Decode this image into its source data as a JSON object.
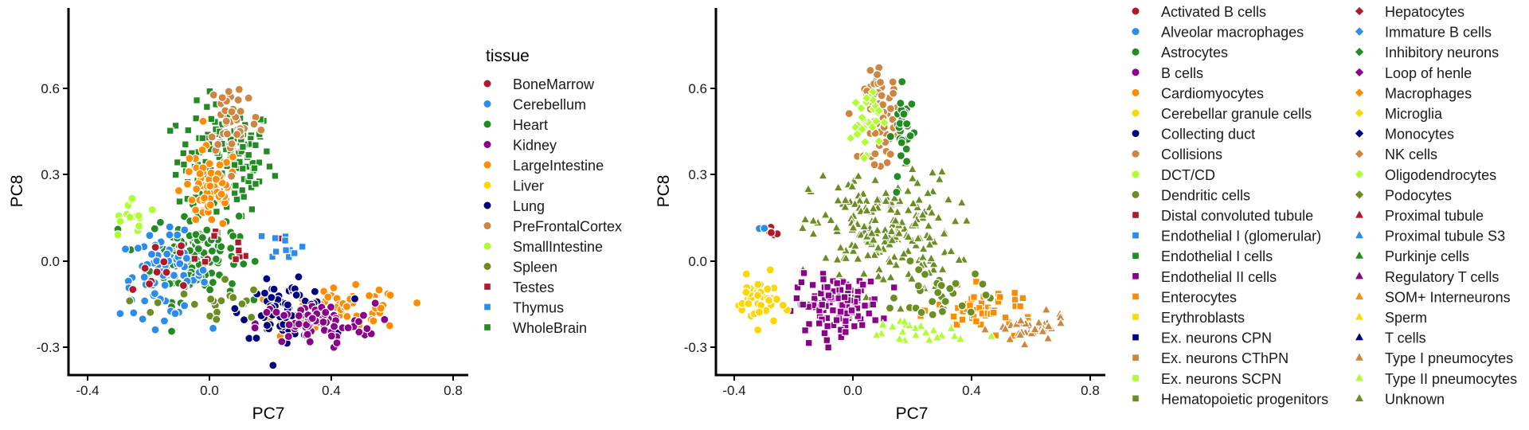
{
  "chart_data": [
    {
      "type": "scatter",
      "xlabel": "PC7",
      "ylabel": "PC8",
      "xlim": [
        -0.45,
        0.85
      ],
      "ylim": [
        -0.4,
        0.87
      ],
      "xticks": [
        "-0.4",
        "0.0",
        "0.4",
        "0.8"
      ],
      "xtick_values": [
        -0.4,
        0.0,
        0.4,
        0.8
      ],
      "yticks": [
        "-0.3",
        "0.0",
        "0.3",
        "0.6"
      ],
      "ytick_values": [
        -0.3,
        0.0,
        0.3,
        0.6
      ],
      "legend_title": "tissue",
      "legend_position": "right",
      "legend": [
        {
          "name": "BoneMarrow",
          "color": "#b2182b",
          "shape": "circle"
        },
        {
          "name": "Cerebellum",
          "color": "#2b8cee",
          "shape": "circle"
        },
        {
          "name": "Heart",
          "color": "#228b22",
          "shape": "circle"
        },
        {
          "name": "Kidney",
          "color": "#8b008b",
          "shape": "circle"
        },
        {
          "name": "LargeIntestine",
          "color": "#ff8c00",
          "shape": "circle"
        },
        {
          "name": "Liver",
          "color": "#ffd700",
          "shape": "circle"
        },
        {
          "name": "Lung",
          "color": "#000080",
          "shape": "circle"
        },
        {
          "name": "PreFrontalCortex",
          "color": "#cd853f",
          "shape": "circle"
        },
        {
          "name": "SmallIntestine",
          "color": "#adff2f",
          "shape": "circle"
        },
        {
          "name": "Spleen",
          "color": "#6b8e23",
          "shape": "circle"
        },
        {
          "name": "Testes",
          "color": "#b2182b",
          "shape": "square"
        },
        {
          "name": "Thymus",
          "color": "#2b8cee",
          "shape": "square"
        },
        {
          "name": "WholeBrain",
          "color": "#228b22",
          "shape": "square"
        }
      ],
      "clusters": [
        {
          "series": "WholeBrain",
          "n": 140,
          "cx": 0.05,
          "cy": 0.35,
          "sx": 0.13,
          "sy": 0.16
        },
        {
          "series": "Heart",
          "n": 130,
          "cx": -0.05,
          "cy": 0.02,
          "sx": 0.12,
          "sy": 0.13
        },
        {
          "series": "Cerebellum",
          "n": 70,
          "cx": -0.15,
          "cy": -0.05,
          "sx": 0.12,
          "sy": 0.12
        },
        {
          "series": "LargeIntestine",
          "n": 70,
          "cx": 0.0,
          "cy": 0.25,
          "sx": 0.08,
          "sy": 0.12
        },
        {
          "series": "LargeIntestine",
          "n": 60,
          "cx": 0.45,
          "cy": -0.17,
          "sx": 0.16,
          "sy": 0.06
        },
        {
          "series": "Lung",
          "n": 80,
          "cx": 0.25,
          "cy": -0.17,
          "sx": 0.12,
          "sy": 0.08
        },
        {
          "series": "Kidney",
          "n": 70,
          "cx": 0.35,
          "cy": -0.22,
          "sx": 0.16,
          "sy": 0.06
        },
        {
          "series": "PreFrontalCortex",
          "n": 40,
          "cx": 0.08,
          "cy": 0.5,
          "sx": 0.07,
          "sy": 0.12
        },
        {
          "series": "SmallIntestine",
          "n": 15,
          "cx": -0.25,
          "cy": 0.15,
          "sx": 0.07,
          "sy": 0.06
        },
        {
          "series": "Spleen",
          "n": 20,
          "cx": 0.0,
          "cy": -0.15,
          "sx": 0.15,
          "sy": 0.08
        },
        {
          "series": "BoneMarrow",
          "n": 12,
          "cx": -0.15,
          "cy": 0.0,
          "sx": 0.1,
          "sy": 0.1
        },
        {
          "series": "Testes",
          "n": 10,
          "cx": 0.1,
          "cy": 0.05,
          "sx": 0.1,
          "sy": 0.06
        },
        {
          "series": "Thymus",
          "n": 12,
          "cx": 0.25,
          "cy": 0.06,
          "sx": 0.05,
          "sy": 0.04
        }
      ]
    },
    {
      "type": "scatter",
      "xlabel": "PC7",
      "ylabel": "PC8",
      "xlim": [
        -0.45,
        0.85
      ],
      "ylim": [
        -0.4,
        0.87
      ],
      "xticks": [
        "-0.4",
        "0.0",
        "0.4",
        "0.8"
      ],
      "xtick_values": [
        -0.4,
        0.0,
        0.4,
        0.8
      ],
      "yticks": [
        "-0.3",
        "0.0",
        "0.3",
        "0.6"
      ],
      "ytick_values": [
        -0.3,
        0.0,
        0.3,
        0.6
      ],
      "legend_title": "",
      "legend_position": "right",
      "legend_columns": 2,
      "legend": [
        {
          "name": "Activated B cells",
          "color": "#b2182b",
          "shape": "circle"
        },
        {
          "name": "Alveolar macrophages",
          "color": "#2b8cee",
          "shape": "circle"
        },
        {
          "name": "Astrocytes",
          "color": "#228b22",
          "shape": "circle"
        },
        {
          "name": "B cells",
          "color": "#8b008b",
          "shape": "circle"
        },
        {
          "name": "Cardiomyocytes",
          "color": "#ff8c00",
          "shape": "circle"
        },
        {
          "name": "Cerebellar granule cells",
          "color": "#ffd700",
          "shape": "circle"
        },
        {
          "name": "Collecting duct",
          "color": "#000080",
          "shape": "circle"
        },
        {
          "name": "Collisions",
          "color": "#cd853f",
          "shape": "circle"
        },
        {
          "name": "DCT/CD",
          "color": "#adff2f",
          "shape": "circle"
        },
        {
          "name": "Dendritic cells",
          "color": "#6b8e23",
          "shape": "circle"
        },
        {
          "name": "Distal convoluted tubule",
          "color": "#b2182b",
          "shape": "square"
        },
        {
          "name": "Endothelial I (glomerular)",
          "color": "#2b8cee",
          "shape": "square"
        },
        {
          "name": "Endothelial I cells",
          "color": "#228b22",
          "shape": "square"
        },
        {
          "name": "Endothelial II cells",
          "color": "#8b008b",
          "shape": "square"
        },
        {
          "name": "Enterocytes",
          "color": "#ff8c00",
          "shape": "square"
        },
        {
          "name": "Erythroblasts",
          "color": "#ffd700",
          "shape": "square"
        },
        {
          "name": "Ex. neurons CPN",
          "color": "#000080",
          "shape": "square"
        },
        {
          "name": "Ex. neurons CThPN",
          "color": "#cd853f",
          "shape": "square"
        },
        {
          "name": "Ex. neurons SCPN",
          "color": "#adff2f",
          "shape": "square"
        },
        {
          "name": "Hematopoietic progenitors",
          "color": "#6b8e23",
          "shape": "square"
        },
        {
          "name": "Hepatocytes",
          "color": "#b2182b",
          "shape": "diamond"
        },
        {
          "name": "Immature B cells",
          "color": "#2b8cee",
          "shape": "diamond"
        },
        {
          "name": "Inhibitory neurons",
          "color": "#228b22",
          "shape": "diamond"
        },
        {
          "name": "Loop of henle",
          "color": "#8b008b",
          "shape": "diamond"
        },
        {
          "name": "Macrophages",
          "color": "#ff8c00",
          "shape": "diamond"
        },
        {
          "name": "Microglia",
          "color": "#ffd700",
          "shape": "diamond"
        },
        {
          "name": "Monocytes",
          "color": "#000080",
          "shape": "diamond"
        },
        {
          "name": "NK cells",
          "color": "#cd853f",
          "shape": "diamond"
        },
        {
          "name": "Oligodendrocytes",
          "color": "#adff2f",
          "shape": "diamond"
        },
        {
          "name": "Podocytes",
          "color": "#6b8e23",
          "shape": "diamond"
        },
        {
          "name": "Proximal tubule",
          "color": "#b2182b",
          "shape": "triangle"
        },
        {
          "name": "Proximal tubule S3",
          "color": "#2b8cee",
          "shape": "triangle"
        },
        {
          "name": "Purkinje cells",
          "color": "#228b22",
          "shape": "triangle"
        },
        {
          "name": "Regulatory T cells",
          "color": "#8b008b",
          "shape": "triangle"
        },
        {
          "name": "SOM+ Interneurons",
          "color": "#ff8c00",
          "shape": "triangle"
        },
        {
          "name": "Sperm",
          "color": "#ffd700",
          "shape": "triangle"
        },
        {
          "name": "T cells",
          "color": "#000080",
          "shape": "triangle"
        },
        {
          "name": "Type I pneumocytes",
          "color": "#cd853f",
          "shape": "triangle"
        },
        {
          "name": "Type II pneumocytes",
          "color": "#adff2f",
          "shape": "triangle"
        },
        {
          "name": "Unknown",
          "color": "#6b8e23",
          "shape": "triangle"
        }
      ],
      "clusters": [
        {
          "series": "Unknown",
          "n": 200,
          "cx": 0.1,
          "cy": 0.1,
          "sx": 0.2,
          "sy": 0.17
        },
        {
          "series": "Endothelial II cells",
          "n": 130,
          "cx": -0.05,
          "cy": -0.15,
          "sx": 0.12,
          "sy": 0.08
        },
        {
          "series": "Collisions",
          "n": 70,
          "cx": 0.1,
          "cy": 0.5,
          "sx": 0.05,
          "sy": 0.13
        },
        {
          "series": "Astrocytes",
          "n": 30,
          "cx": 0.17,
          "cy": 0.45,
          "sx": 0.03,
          "sy": 0.12
        },
        {
          "series": "Oligodendrocytes",
          "n": 30,
          "cx": 0.04,
          "cy": 0.5,
          "sx": 0.04,
          "sy": 0.1
        },
        {
          "series": "Cerebellar granule cells",
          "n": 40,
          "cx": -0.32,
          "cy": -0.14,
          "sx": 0.06,
          "sy": 0.07
        },
        {
          "series": "Enterocytes",
          "n": 50,
          "cx": 0.45,
          "cy": -0.17,
          "sx": 0.14,
          "sy": 0.06
        },
        {
          "series": "Type I pneumocytes",
          "n": 40,
          "cx": 0.6,
          "cy": -0.24,
          "sx": 0.1,
          "sy": 0.04
        },
        {
          "series": "Type II pneumocytes",
          "n": 25,
          "cx": 0.2,
          "cy": -0.25,
          "sx": 0.15,
          "sy": 0.05
        },
        {
          "series": "Dendritic cells",
          "n": 30,
          "cx": 0.3,
          "cy": -0.12,
          "sx": 0.12,
          "sy": 0.08
        },
        {
          "series": "Activated B cells",
          "n": 5,
          "cx": -0.28,
          "cy": 0.1,
          "sx": 0.03,
          "sy": 0.03
        },
        {
          "series": "Alveolar macrophages",
          "n": 2,
          "cx": -0.31,
          "cy": 0.11,
          "sx": 0.01,
          "sy": 0.01
        }
      ]
    }
  ]
}
